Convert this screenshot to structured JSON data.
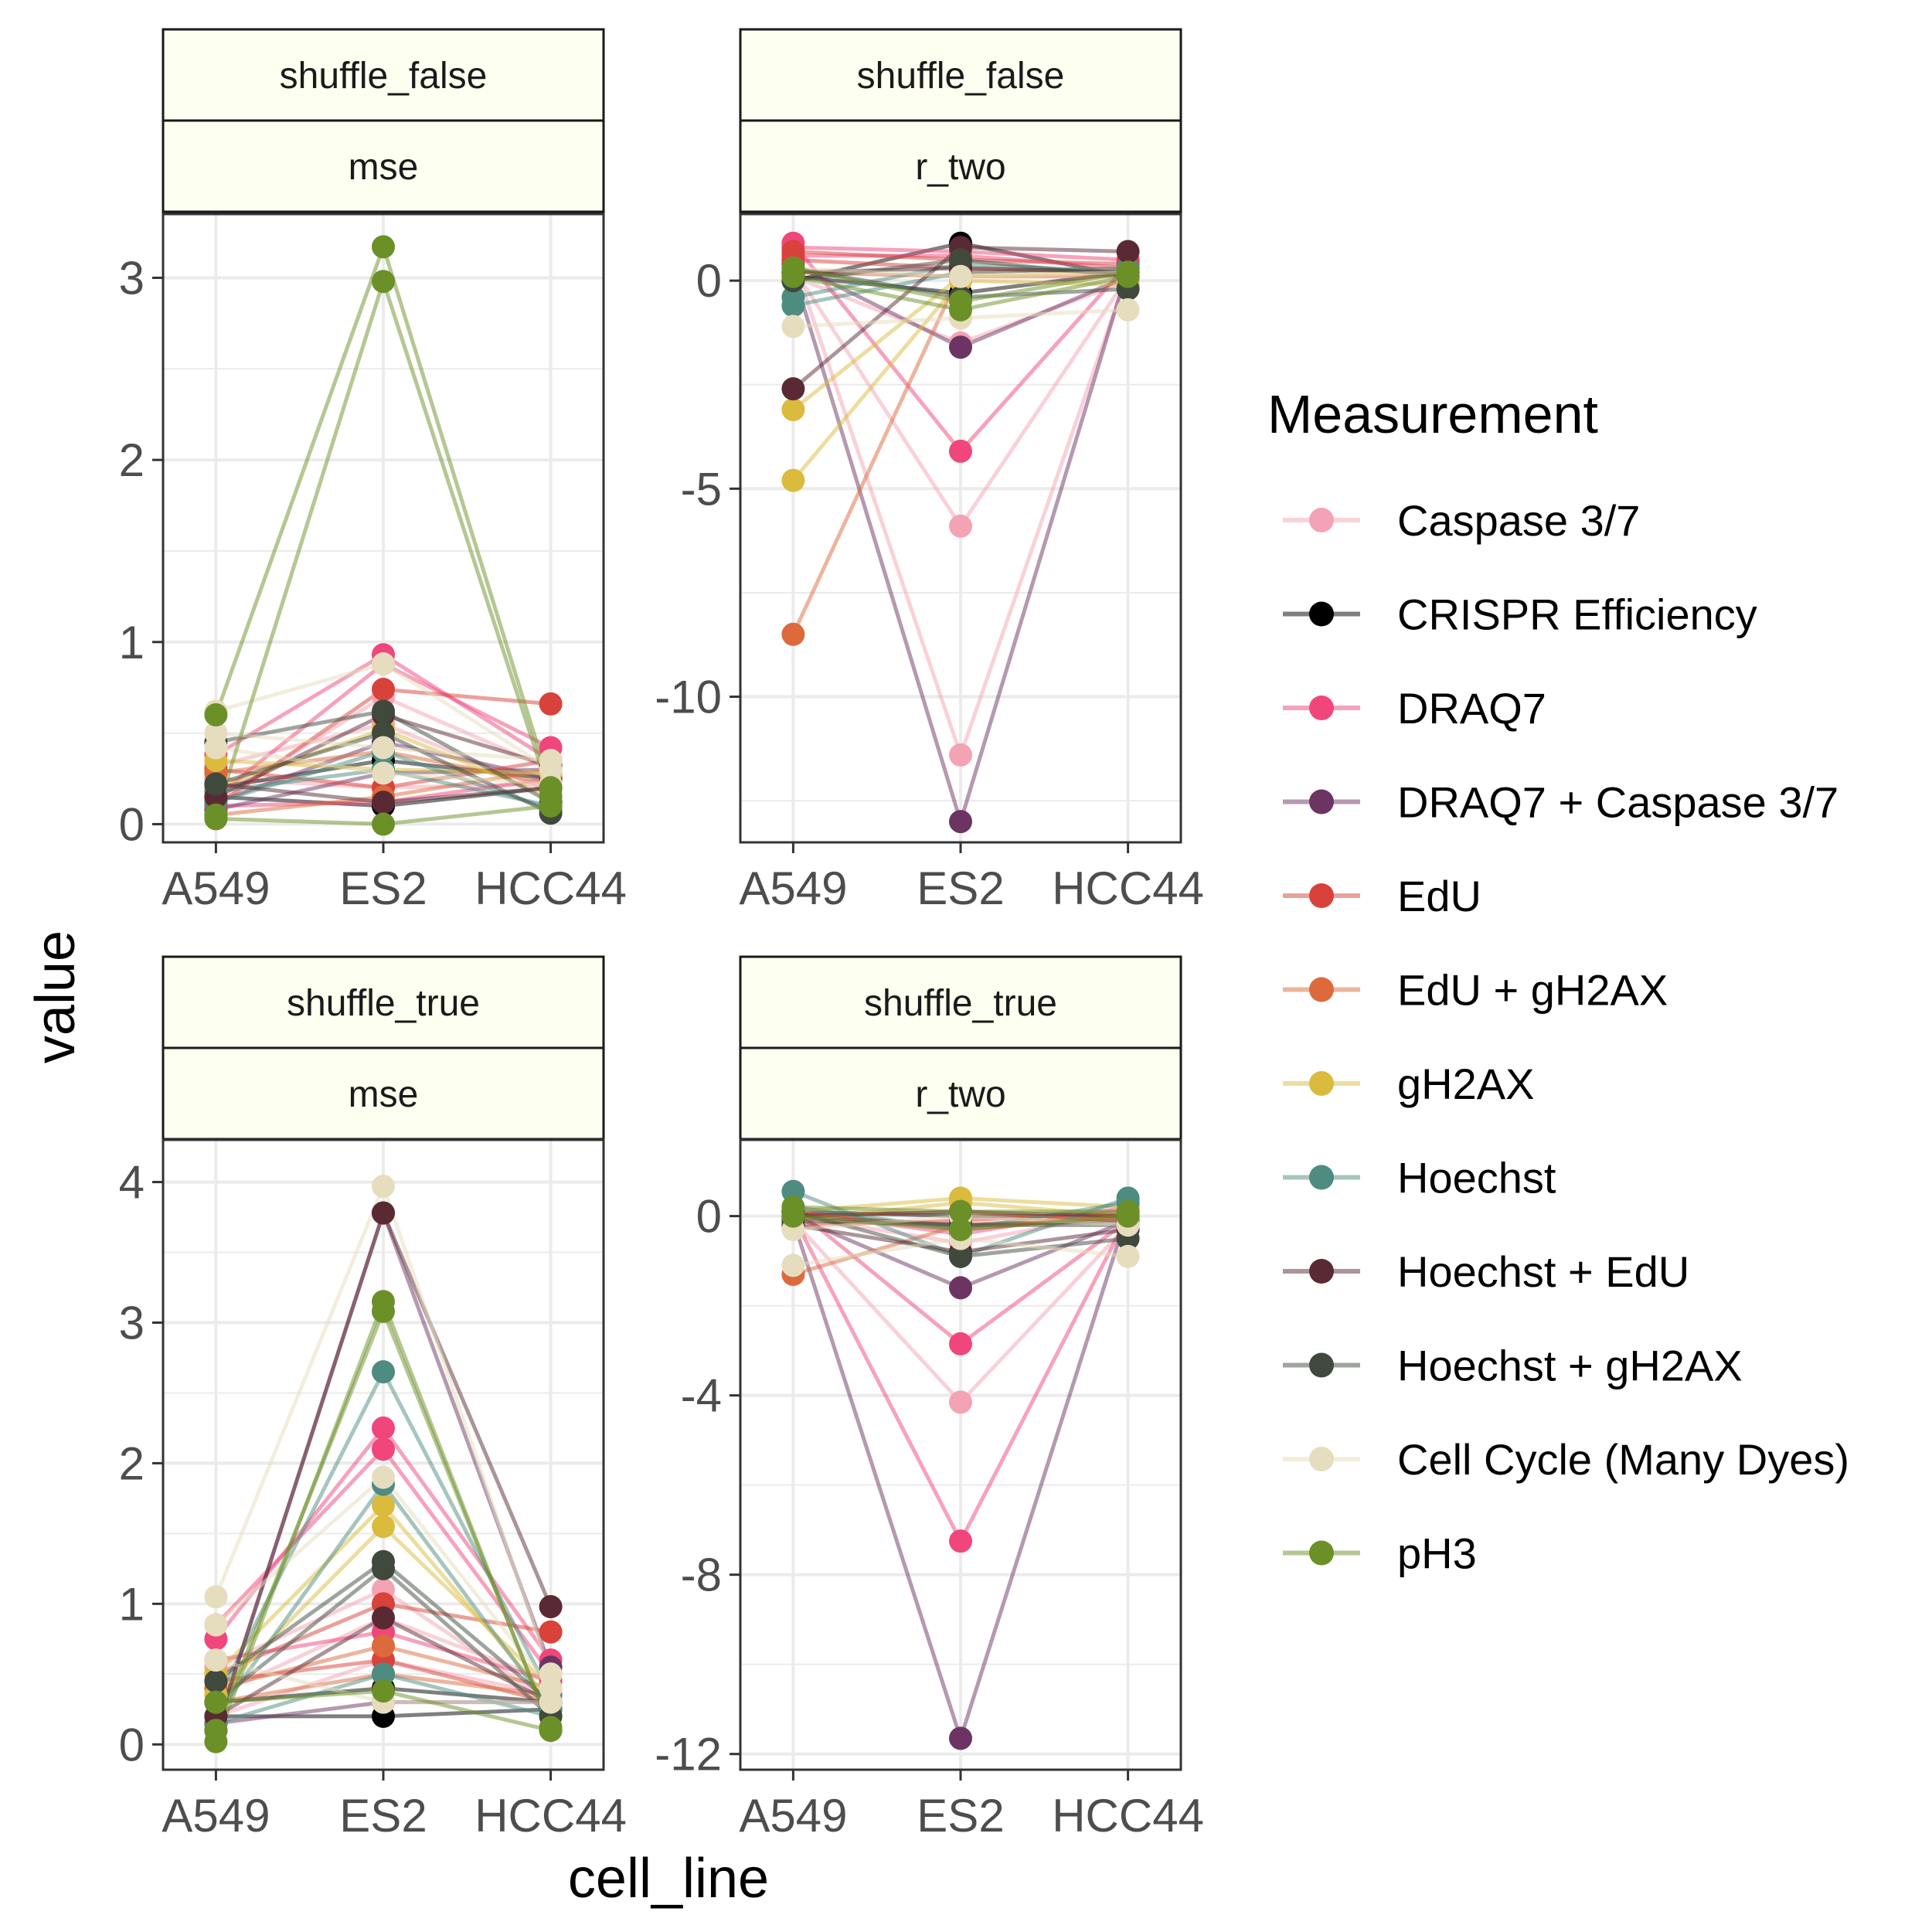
{
  "chart_data": {
    "type": "line",
    "xlabel": "cell_line",
    "ylabel": "value",
    "categories": [
      "A549",
      "ES2",
      "HCC44"
    ],
    "legend": {
      "title": "Measurement",
      "position": "right",
      "entries": [
        {
          "name": "Caspase 3/7",
          "color": "#F4A3B4"
        },
        {
          "name": "CRISPR Efficiency",
          "color": "#000000"
        },
        {
          "name": "DRAQ7",
          "color": "#F0467C"
        },
        {
          "name": "DRAQ7 + Caspase 3/7",
          "color": "#6B3462"
        },
        {
          "name": "EdU",
          "color": "#D8423A"
        },
        {
          "name": "EdU + gH2AX",
          "color": "#DC6A3C"
        },
        {
          "name": "gH2AX",
          "color": "#DBBB3E"
        },
        {
          "name": "Hoechst",
          "color": "#4E8B80"
        },
        {
          "name": "Hoechst + EdU",
          "color": "#5A2A34"
        },
        {
          "name": "Hoechst + gH2AX",
          "color": "#3F4A3D"
        },
        {
          "name": "Cell Cycle (Many Dyes)",
          "color": "#E6DDBE"
        },
        {
          "name": "pH3",
          "color": "#6B9028"
        }
      ]
    },
    "grid": true,
    "panels": [
      {
        "strip_top": "shuffle_false",
        "strip_bottom": "mse",
        "ylim": [
          -0.1,
          3.35
        ],
        "yticks": [
          0,
          1,
          2,
          3
        ],
        "ytick_labels": [
          "0",
          "1",
          "2",
          "3"
        ],
        "series": [
          {
            "name": "Caspase 3/7",
            "values": [
              [
                0.25,
                0.2,
                0.22
              ],
              [
                0.32,
                0.55,
                0.18
              ],
              [
                0.12,
                0.7,
                0.3
              ]
            ]
          },
          {
            "name": "CRISPR Efficiency",
            "values": [
              [
                0.2,
                0.35,
                0.25
              ],
              [
                0.15,
                0.1,
                0.2
              ]
            ]
          },
          {
            "name": "DRAQ7",
            "values": [
              [
                0.38,
                0.93,
                0.35
              ],
              [
                0.15,
                0.88,
                0.42
              ],
              [
                0.1,
                0.12,
                0.25
              ]
            ]
          },
          {
            "name": "DRAQ7 + Caspase 3/7",
            "values": [
              [
                0.08,
                0.28,
                0.3
              ],
              [
                0.12,
                0.45,
                0.25
              ]
            ]
          },
          {
            "name": "EdU",
            "values": [
              [
                0.1,
                0.74,
                0.66
              ],
              [
                0.3,
                0.2,
                0.35
              ]
            ]
          },
          {
            "name": "EdU + gH2AX",
            "values": [
              [
                0.28,
                0.4,
                0.22
              ],
              [
                0.05,
                0.15,
                0.3
              ]
            ]
          },
          {
            "name": "gH2AX",
            "values": [
              [
                0.2,
                0.52,
                0.15
              ],
              [
                0.35,
                0.3,
                0.28
              ]
            ]
          },
          {
            "name": "Hoechst",
            "values": [
              [
                0.18,
                0.3,
                0.1
              ],
              [
                0.12,
                0.4,
                0.08
              ]
            ]
          },
          {
            "name": "Hoechst + EdU",
            "values": [
              [
                0.15,
                0.6,
                0.32
              ],
              [
                0.22,
                0.12,
                0.2
              ]
            ]
          },
          {
            "name": "Hoechst + gH2AX",
            "values": [
              [
                0.45,
                0.62,
                0.12
              ],
              [
                0.22,
                0.5,
                0.06
              ]
            ]
          },
          {
            "name": "Cell Cycle (Many Dyes)",
            "values": [
              [
                0.62,
                0.88,
                0.3
              ],
              [
                0.5,
                0.42,
                0.35
              ],
              [
                0.42,
                0.28,
                0.22
              ]
            ]
          },
          {
            "name": "pH3",
            "values": [
              [
                0.6,
                3.17,
                0.2
              ],
              [
                0.05,
                2.98,
                0.15
              ],
              [
                0.03,
                0.0,
                0.1
              ]
            ]
          }
        ]
      },
      {
        "strip_top": "shuffle_false",
        "strip_bottom": "r_two",
        "ylim": [
          -13.5,
          1.6
        ],
        "yticks": [
          0,
          -5,
          -10
        ],
        "ytick_labels": [
          "0",
          "-5",
          "-10"
        ],
        "series": [
          {
            "name": "Caspase 3/7",
            "values": [
              [
                0.3,
                -5.9,
                0.1
              ],
              [
                0.5,
                -11.4,
                0.2
              ],
              [
                0.1,
                -1.5,
                0.0
              ]
            ]
          },
          {
            "name": "CRISPR Efficiency",
            "values": [
              [
                0.1,
                -0.3,
                0.2
              ],
              [
                0.0,
                0.9,
                0.1
              ]
            ]
          },
          {
            "name": "DRAQ7",
            "values": [
              [
                0.9,
                -4.1,
                0.4
              ],
              [
                0.8,
                0.7,
                0.5
              ],
              [
                0.6,
                0.6,
                0.3
              ]
            ]
          },
          {
            "name": "DRAQ7 + Caspase 3/7",
            "values": [
              [
                0.2,
                -13.0,
                0.3
              ],
              [
                0.4,
                -1.6,
                0.1
              ]
            ]
          },
          {
            "name": "EdU",
            "values": [
              [
                0.5,
                0.3,
                0.2
              ],
              [
                0.7,
                0.5,
                0.4
              ]
            ]
          },
          {
            "name": "EdU + gH2AX",
            "values": [
              [
                -8.5,
                0.2,
                0.3
              ],
              [
                0.2,
                0.1,
                0.1
              ]
            ]
          },
          {
            "name": "gH2AX",
            "values": [
              [
                -3.1,
                0.1,
                0.2
              ],
              [
                -4.8,
                0.0,
                -0.1
              ]
            ]
          },
          {
            "name": "Hoechst",
            "values": [
              [
                -0.6,
                0.2,
                0.3
              ],
              [
                -0.4,
                0.4,
                0.2
              ]
            ]
          },
          {
            "name": "Hoechst + EdU",
            "values": [
              [
                -2.6,
                0.8,
                0.7
              ],
              [
                0.2,
                0.3,
                0.2
              ]
            ]
          },
          {
            "name": "Hoechst + gH2AX",
            "values": [
              [
                0.3,
                -0.4,
                -0.2
              ],
              [
                0.0,
                0.5,
                0.1
              ]
            ]
          },
          {
            "name": "Cell Cycle (Many Dyes)",
            "values": [
              [
                -1.1,
                -0.9,
                -0.7
              ],
              [
                0.3,
                0.1,
                0.2
              ]
            ]
          },
          {
            "name": "pH3",
            "values": [
              [
                0.1,
                -0.7,
                0.1
              ],
              [
                0.3,
                -0.5,
                0.2
              ]
            ]
          }
        ]
      },
      {
        "strip_top": "shuffle_true",
        "strip_bottom": "mse",
        "ylim": [
          -0.18,
          4.3
        ],
        "yticks": [
          0,
          1,
          2,
          3,
          4
        ],
        "ytick_labels": [
          "0",
          "1",
          "2",
          "3",
          "4"
        ],
        "series": [
          {
            "name": "Caspase 3/7",
            "values": [
              [
                0.55,
                1.1,
                0.3
              ],
              [
                0.35,
                0.9,
                0.45
              ],
              [
                0.2,
                0.6,
                0.35
              ]
            ]
          },
          {
            "name": "CRISPR Efficiency",
            "values": [
              [
                0.3,
                0.4,
                0.3
              ],
              [
                0.2,
                0.2,
                0.25
              ]
            ]
          },
          {
            "name": "DRAQ7",
            "values": [
              [
                0.75,
                2.25,
                0.6
              ],
              [
                0.85,
                2.1,
                0.5
              ],
              [
                0.6,
                0.8,
                0.45
              ]
            ]
          },
          {
            "name": "DRAQ7 + Caspase 3/7",
            "values": [
              [
                0.1,
                3.78,
                0.55
              ],
              [
                0.15,
                0.3,
                0.3
              ]
            ]
          },
          {
            "name": "EdU",
            "values": [
              [
                0.5,
                1.0,
                0.8
              ],
              [
                0.45,
                0.6,
                0.3
              ]
            ]
          },
          {
            "name": "EdU + gH2AX",
            "values": [
              [
                0.4,
                0.7,
                0.4
              ],
              [
                0.3,
                0.5,
                0.35
              ]
            ]
          },
          {
            "name": "gH2AX",
            "values": [
              [
                0.35,
                1.55,
                0.4
              ],
              [
                0.5,
                1.7,
                0.3
              ]
            ]
          },
          {
            "name": "Hoechst",
            "values": [
              [
                0.3,
                2.65,
                0.35
              ],
              [
                0.2,
                1.85,
                0.25
              ],
              [
                0.15,
                0.5,
                0.2
              ]
            ]
          },
          {
            "name": "Hoechst + EdU",
            "values": [
              [
                0.1,
                3.78,
                0.98
              ],
              [
                0.2,
                0.9,
                0.3
              ]
            ]
          },
          {
            "name": "Hoechst + gH2AX",
            "values": [
              [
                0.45,
                1.3,
                0.3
              ],
              [
                0.3,
                1.25,
                0.2
              ]
            ]
          },
          {
            "name": "Cell Cycle (Many Dyes)",
            "values": [
              [
                1.05,
                3.97,
                0.5
              ],
              [
                0.85,
                1.9,
                0.4
              ],
              [
                0.6,
                0.3,
                0.3
              ]
            ]
          },
          {
            "name": "pH3",
            "values": [
              [
                0.02,
                3.15,
                0.1
              ],
              [
                0.1,
                3.08,
                0.12
              ],
              [
                0.3,
                0.38,
                0.1
              ]
            ]
          }
        ]
      },
      {
        "strip_top": "shuffle_true",
        "strip_bottom": "r_two",
        "ylim": [
          -12.35,
          1.7
        ],
        "yticks": [
          0,
          -4,
          -8,
          -12
        ],
        "ytick_labels": [
          "0",
          "-4",
          "-8",
          "-12"
        ],
        "series": [
          {
            "name": "Caspase 3/7",
            "values": [
              [
                -0.1,
                -4.15,
                -0.2
              ],
              [
                0.0,
                -0.6,
                0.1
              ]
            ]
          },
          {
            "name": "CRISPR Efficiency",
            "values": [
              [
                0.0,
                -0.2,
                -0.1
              ],
              [
                0.1,
                0.0,
                0.0
              ]
            ]
          },
          {
            "name": "DRAQ7",
            "values": [
              [
                0.2,
                -2.85,
                -0.1
              ],
              [
                0.0,
                -7.25,
                0.0
              ],
              [
                0.1,
                -0.4,
                0.2
              ]
            ]
          },
          {
            "name": "DRAQ7 + Caspase 3/7",
            "values": [
              [
                -0.1,
                -11.65,
                0.1
              ],
              [
                0.0,
                -1.6,
                -0.1
              ]
            ]
          },
          {
            "name": "EdU",
            "values": [
              [
                0.1,
                -0.3,
                0.0
              ],
              [
                -0.2,
                -0.1,
                0.1
              ]
            ]
          },
          {
            "name": "EdU + gH2AX",
            "values": [
              [
                -1.3,
                -0.2,
                0.0
              ],
              [
                0.0,
                0.1,
                -0.1
              ]
            ]
          },
          {
            "name": "gH2AX",
            "values": [
              [
                0.1,
                0.4,
                0.2
              ],
              [
                -0.1,
                0.3,
                0.0
              ]
            ]
          },
          {
            "name": "Hoechst",
            "values": [
              [
                0.55,
                -0.9,
                0.4
              ],
              [
                0.2,
                -0.3,
                0.3
              ]
            ]
          },
          {
            "name": "Hoechst + EdU",
            "values": [
              [
                -0.2,
                -0.8,
                -0.3
              ],
              [
                0.0,
                0.1,
                0.0
              ]
            ]
          },
          {
            "name": "Hoechst + gH2AX",
            "values": [
              [
                0.1,
                -0.9,
                -0.5
              ],
              [
                -0.1,
                -0.2,
                -0.2
              ]
            ]
          },
          {
            "name": "Cell Cycle (Many Dyes)",
            "values": [
              [
                -1.1,
                -0.5,
                -0.9
              ],
              [
                -0.3,
                0.0,
                -0.2
              ]
            ]
          },
          {
            "name": "pH3",
            "values": [
              [
                0.0,
                -0.3,
                0.0
              ],
              [
                0.2,
                0.1,
                0.1
              ]
            ]
          }
        ]
      }
    ]
  }
}
